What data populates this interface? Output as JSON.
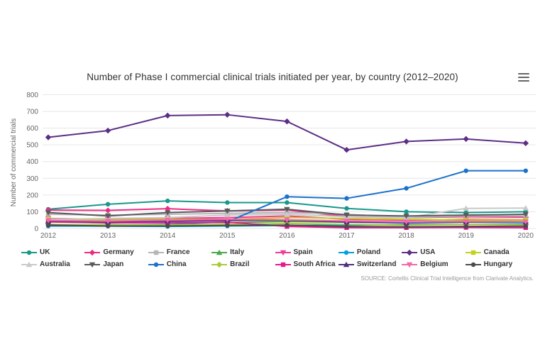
{
  "chart": {
    "title": "Number of Phase I commercial clinical trials initiated per year, by country (2012–2020)",
    "y_axis_title": "Number of commercial trials",
    "source": "SOURCE: Cortellis Clinical Trial Intelligence from Clarivate Analytics.",
    "menu_icon": "hamburger-export-menu"
  },
  "chart_data": {
    "type": "line",
    "x": [
      2012,
      2013,
      2014,
      2015,
      2016,
      2017,
      2018,
      2019,
      2020
    ],
    "xlabel": "",
    "ylabel": "Number of commercial trials",
    "ylim": [
      0,
      800
    ],
    "y_ticks": [
      0,
      100,
      200,
      300,
      400,
      500,
      600,
      700,
      800
    ],
    "grid": true,
    "legend_position": "bottom",
    "series": [
      {
        "name": "UK",
        "color": "#18988b",
        "marker": "circle",
        "values": [
          115,
          145,
          165,
          155,
          155,
          120,
          100,
          95,
          100
        ]
      },
      {
        "name": "Germany",
        "color": "#ee2a83",
        "marker": "diamond",
        "values": [
          110,
          108,
          118,
          105,
          110,
          70,
          65,
          70,
          68
        ]
      },
      {
        "name": "France",
        "color": "#b6b6b6",
        "marker": "square",
        "values": [
          85,
          80,
          85,
          90,
          95,
          85,
          65,
          75,
          75
        ]
      },
      {
        "name": "Italy",
        "color": "#4aa84e",
        "marker": "triangle",
        "values": [
          40,
          32,
          38,
          35,
          42,
          38,
          40,
          45,
          48
        ]
      },
      {
        "name": "Spain",
        "color": "#ef3a96",
        "marker": "triangle-down",
        "values": [
          60,
          55,
          60,
          65,
          75,
          55,
          50,
          55,
          52
        ]
      },
      {
        "name": "Poland",
        "color": "#00a0df",
        "marker": "circle",
        "values": [
          15,
          14,
          12,
          15,
          18,
          20,
          25,
          25,
          28
        ]
      },
      {
        "name": "USA",
        "color": "#5c2e86",
        "marker": "diamond",
        "values": [
          545,
          585,
          675,
          680,
          640,
          470,
          520,
          535,
          510
        ]
      },
      {
        "name": "Canada",
        "color": "#c2d11f",
        "marker": "square",
        "values": [
          58,
          50,
          55,
          55,
          65,
          60,
          55,
          52,
          50
        ]
      },
      {
        "name": "Australia",
        "color": "#c9c9c9",
        "marker": "triangle",
        "values": [
          55,
          60,
          65,
          80,
          85,
          70,
          65,
          120,
          122
        ]
      },
      {
        "name": "Japan",
        "color": "#595a5c",
        "marker": "triangle-down",
        "values": [
          95,
          75,
          95,
          105,
          115,
          80,
          75,
          80,
          85
        ]
      },
      {
        "name": "China",
        "color": "#1b72cb",
        "marker": "circle",
        "values": [
          15,
          20,
          25,
          40,
          190,
          180,
          240,
          345,
          345
        ]
      },
      {
        "name": "Brazil",
        "color": "#a9cb38",
        "marker": "diamond",
        "values": [
          25,
          20,
          22,
          25,
          30,
          25,
          20,
          25,
          22
        ]
      },
      {
        "name": "South Africa",
        "color": "#e5198b",
        "marker": "square",
        "values": [
          40,
          35,
          35,
          38,
          12,
          5,
          5,
          6,
          5
        ]
      },
      {
        "name": "Switzerland",
        "color": "#4f2d7f",
        "marker": "triangle",
        "values": [
          45,
          40,
          45,
          48,
          50,
          38,
          35,
          38,
          38
        ]
      },
      {
        "name": "Belgium",
        "color": "#f268a8",
        "marker": "triangle-down",
        "values": [
          48,
          44,
          50,
          55,
          52,
          45,
          40,
          42,
          40
        ]
      },
      {
        "name": "Hungary",
        "color": "#4b4b4d",
        "marker": "circle",
        "values": [
          20,
          15,
          15,
          18,
          20,
          12,
          10,
          12,
          14
        ]
      }
    ]
  }
}
